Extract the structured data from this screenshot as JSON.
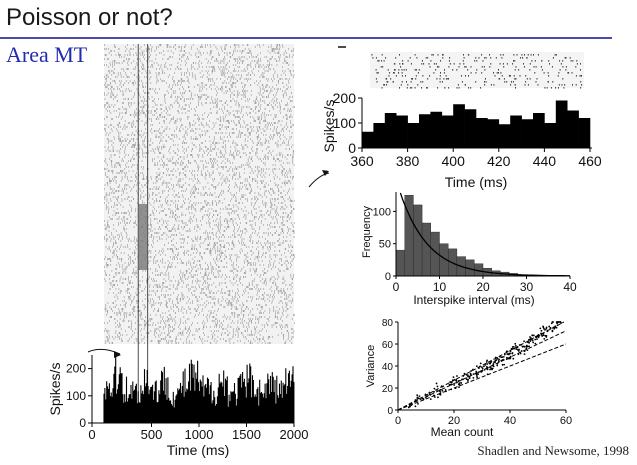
{
  "slide": {
    "title": "Poisson or not?",
    "subtitle": "Area MT",
    "credit": "Shadlen and Newsome, 1998"
  },
  "chart_data": [
    {
      "id": "mt-raster-psth",
      "type": "bar",
      "panel": "raster above, PSTH below",
      "xlabel": "Time (ms)",
      "ylabel": "Spikes/s",
      "xlim": [
        0,
        2000
      ],
      "ylim": [
        0,
        250
      ],
      "xticks": [
        0,
        500,
        1000,
        1500,
        2000
      ],
      "yticks": [
        0,
        100,
        200
      ],
      "highlight_window_ms": [
        360,
        460
      ],
      "x": [
        0,
        100,
        200,
        300,
        400,
        500,
        600,
        700,
        800,
        900,
        1000,
        1100,
        1200,
        1300,
        1400,
        1500,
        1600,
        1700,
        1800,
        1900,
        2000
      ],
      "values": [
        160,
        210,
        150,
        140,
        190,
        150,
        180,
        120,
        170,
        200,
        150,
        140,
        180,
        130,
        160,
        190,
        140,
        170,
        150,
        180,
        160
      ]
    },
    {
      "id": "zoom-raster-psth",
      "type": "bar",
      "xlabel": "Time (ms)",
      "ylabel": "Spikes/s",
      "xlim": [
        360,
        460
      ],
      "ylim": [
        0,
        200
      ],
      "xticks": [
        360,
        380,
        400,
        420,
        440,
        460
      ],
      "yticks": [
        0,
        100,
        200
      ],
      "x": [
        360,
        365,
        370,
        375,
        380,
        385,
        390,
        395,
        400,
        405,
        410,
        415,
        420,
        425,
        430,
        435,
        440,
        445,
        450,
        455
      ],
      "values": [
        65,
        100,
        140,
        130,
        100,
        135,
        145,
        130,
        175,
        155,
        120,
        115,
        95,
        130,
        115,
        140,
        100,
        190,
        150,
        120
      ]
    },
    {
      "id": "isi-histogram",
      "type": "bar",
      "xlabel": "Interspike interval (ms)",
      "ylabel": "Frequency",
      "xlim": [
        0,
        40
      ],
      "ylim": [
        0,
        130
      ],
      "xticks": [
        0,
        10,
        20,
        30,
        40
      ],
      "yticks": [
        0,
        50,
        100
      ],
      "x": [
        1,
        3,
        5,
        7,
        9,
        11,
        13,
        15,
        17,
        19,
        21,
        23,
        25,
        27,
        29
      ],
      "values": [
        40,
        125,
        110,
        82,
        68,
        50,
        42,
        30,
        25,
        19,
        12,
        8,
        6,
        4,
        2
      ],
      "fit": "exponential"
    },
    {
      "id": "variance-vs-mean",
      "type": "scatter",
      "xlabel": "Mean count",
      "ylabel": "Variance",
      "xlim": [
        0,
        60
      ],
      "ylim": [
        0,
        80
      ],
      "xticks": [
        0,
        20,
        40,
        60
      ],
      "yticks": [
        0,
        20,
        40,
        60,
        80
      ],
      "points": [
        [
          5,
          5
        ],
        [
          8,
          9
        ],
        [
          10,
          12
        ],
        [
          12,
          14
        ],
        [
          14,
          16
        ],
        [
          15,
          20
        ],
        [
          16,
          18
        ],
        [
          18,
          22
        ],
        [
          20,
          24
        ],
        [
          21,
          27
        ],
        [
          22,
          25
        ],
        [
          24,
          30
        ],
        [
          25,
          29
        ],
        [
          26,
          33
        ],
        [
          28,
          34
        ],
        [
          29,
          36
        ],
        [
          30,
          38
        ],
        [
          31,
          37
        ],
        [
          32,
          40
        ],
        [
          33,
          42
        ],
        [
          34,
          41
        ],
        [
          35,
          44
        ],
        [
          36,
          46
        ],
        [
          37,
          45
        ],
        [
          38,
          48
        ],
        [
          39,
          50
        ],
        [
          40,
          52
        ],
        [
          41,
          51
        ],
        [
          42,
          54
        ],
        [
          43,
          56
        ],
        [
          44,
          55
        ],
        [
          45,
          58
        ],
        [
          46,
          60
        ],
        [
          47,
          62
        ],
        [
          48,
          63
        ],
        [
          49,
          64
        ],
        [
          50,
          66
        ],
        [
          51,
          67
        ],
        [
          52,
          70
        ],
        [
          53,
          72
        ],
        [
          54,
          74
        ],
        [
          55,
          76
        ],
        [
          56,
          78
        ],
        [
          57,
          79
        ],
        [
          58,
          80
        ]
      ],
      "lines": [
        {
          "slope": 1.0,
          "style": "dashed"
        },
        {
          "slope": 1.2,
          "style": "dashed"
        },
        {
          "slope": 1.35,
          "style": "dashed"
        }
      ]
    }
  ]
}
